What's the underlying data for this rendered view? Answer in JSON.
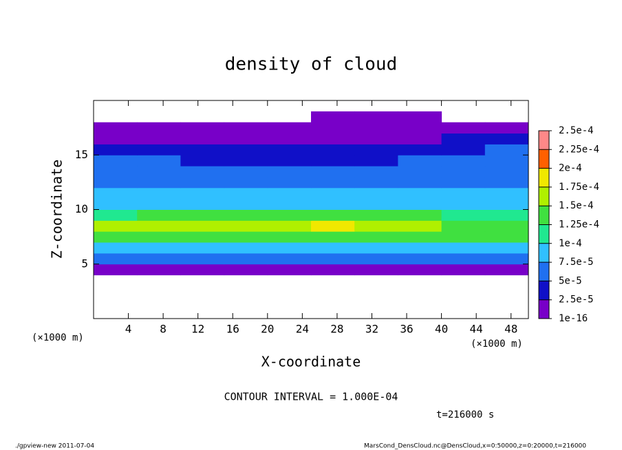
{
  "chart_data": {
    "type": "heatmap",
    "title": "density of cloud",
    "xlabel": "X-coordinate",
    "ylabel": "Z-coordinate",
    "xunit": "(×1000 m)",
    "x": [
      2.5,
      7.5,
      12.5,
      17.5,
      22.5,
      27.5,
      32.5,
      37.5,
      42.5,
      47.5
    ],
    "y": [
      0.5,
      1.5,
      2.5,
      3.5,
      4.5,
      5.5,
      6.5,
      7.5,
      8.5,
      9.5,
      10.5,
      11.5,
      12.5,
      13.5,
      14.5,
      15.5,
      16.5,
      17.5,
      18.5,
      19.5
    ],
    "xlim": [
      0,
      50
    ],
    "ylim": [
      0,
      20
    ],
    "xticks": [
      4,
      8,
      12,
      16,
      20,
      24,
      28,
      32,
      36,
      40,
      44,
      48
    ],
    "yticks": [
      5,
      10,
      15
    ],
    "values": [
      [
        null,
        null,
        null,
        null,
        null,
        null,
        null,
        null,
        null,
        null
      ],
      [
        null,
        null,
        null,
        null,
        null,
        null,
        null,
        null,
        null,
        null
      ],
      [
        null,
        null,
        null,
        null,
        null,
        null,
        null,
        null,
        null,
        null
      ],
      [
        null,
        null,
        null,
        null,
        null,
        null,
        null,
        null,
        null,
        null
      ],
      [
        1.5e-05,
        1.2e-05,
        1.5e-05,
        1e-05,
        1.3e-05,
        1.2e-05,
        1.4e-05,
        1.1e-05,
        1.2e-05,
        1.5e-05
      ],
      [
        6e-05,
        6.5e-05,
        6e-05,
        6.2e-05,
        6.4e-05,
        6e-05,
        6.3e-05,
        6.1e-05,
        6.5e-05,
        6e-05
      ],
      [
        9.5e-05,
        9e-05,
        9.8e-05,
        9.2e-05,
        9.4e-05,
        9.6e-05,
        9.1e-05,
        9.3e-05,
        9e-05,
        9.5e-05
      ],
      [
        0.000135,
        0.000145,
        0.00014,
        0.000138,
        0.000142,
        0.000148,
        0.000145,
        0.00014,
        0.00013,
        0.000125
      ],
      [
        0.000155,
        0.00017,
        0.00016,
        0.000158,
        0.000162,
        0.000175,
        0.000172,
        0.00016,
        0.000145,
        0.00014
      ],
      [
        0.00012,
        0.00013,
        0.000128,
        0.000135,
        0.00014,
        0.000138,
        0.000132,
        0.000125,
        0.000115,
        0.00011
      ],
      [
        8.5e-05,
        9e-05,
        9.2e-05,
        9.5e-05,
        9.5e-05,
        9.3e-05,
        9e-05,
        8.8e-05,
        8.5e-05,
        8e-05
      ],
      [
        8e-05,
        8.2e-05,
        8e-05,
        8.4e-05,
        8.2e-05,
        8e-05,
        7.8e-05,
        7.6e-05,
        7.8e-05,
        7.8e-05
      ],
      [
        7.2e-05,
        7e-05,
        6.8e-05,
        7e-05,
        7.2e-05,
        7e-05,
        6.8e-05,
        7e-05,
        7.2e-05,
        7e-05
      ],
      [
        6e-05,
        5.8e-05,
        5.6e-05,
        6e-05,
        5.8e-05,
        5.6e-05,
        5.4e-05,
        5.8e-05,
        6.2e-05,
        6e-05
      ],
      [
        5.5e-05,
        5.2e-05,
        4.5e-05,
        4.8e-05,
        4.6e-05,
        4e-05,
        4.2e-05,
        5e-05,
        5.6e-05,
        5.8e-05
      ],
      [
        4.5e-05,
        3.5e-05,
        3e-05,
        3.2e-05,
        3e-05,
        2.8e-05,
        2.6e-05,
        3.5e-05,
        4.5e-05,
        5.2e-05
      ],
      [
        2.4e-05,
        2e-05,
        1.8e-05,
        1.6e-05,
        2e-05,
        1.5e-05,
        1.8e-05,
        2.2e-05,
        2.6e-05,
        3e-05
      ],
      [
        1e-05,
        1.2e-05,
        8e-06,
        1e-05,
        1.2e-05,
        1.4e-05,
        1.2e-05,
        1.5e-05,
        1e-05,
        5e-06
      ],
      [
        null,
        null,
        null,
        null,
        null,
        5e-06,
        5e-06,
        5e-06,
        null,
        null
      ],
      [
        null,
        null,
        null,
        null,
        null,
        null,
        null,
        null,
        null,
        null
      ]
    ],
    "levels": [
      {
        "value": 1e-16,
        "label": "1e-16"
      },
      {
        "value": 2.5e-05,
        "label": "2.5e-5"
      },
      {
        "value": 5e-05,
        "label": "5e-5"
      },
      {
        "value": 7.5e-05,
        "label": "7.5e-5"
      },
      {
        "value": 0.0001,
        "label": "1e-4"
      },
      {
        "value": 0.000125,
        "label": "1.25e-4"
      },
      {
        "value": 0.00015,
        "label": "1.5e-4"
      },
      {
        "value": 0.000175,
        "label": "1.75e-4"
      },
      {
        "value": 0.0002,
        "label": "2e-4"
      },
      {
        "value": 0.000225,
        "label": "2.25e-4"
      },
      {
        "value": 0.00025,
        "label": "2.5e-4"
      }
    ],
    "colors": [
      "#7800c8",
      "#1010c8",
      "#2070f0",
      "#30c0ff",
      "#20e890",
      "#40e040",
      "#b0f000",
      "#f0e800",
      "#ff6000",
      "#ff8888"
    ],
    "contour_note": "CONTOUR INTERVAL = 1.000E-04",
    "time_note": "t=216000 s",
    "footer_left": "./gpview-new  2011-07-04",
    "footer_right": "MarsCond_DensCloud.nc@DensCloud,x=0:50000,z=0:20000,t=216000"
  }
}
